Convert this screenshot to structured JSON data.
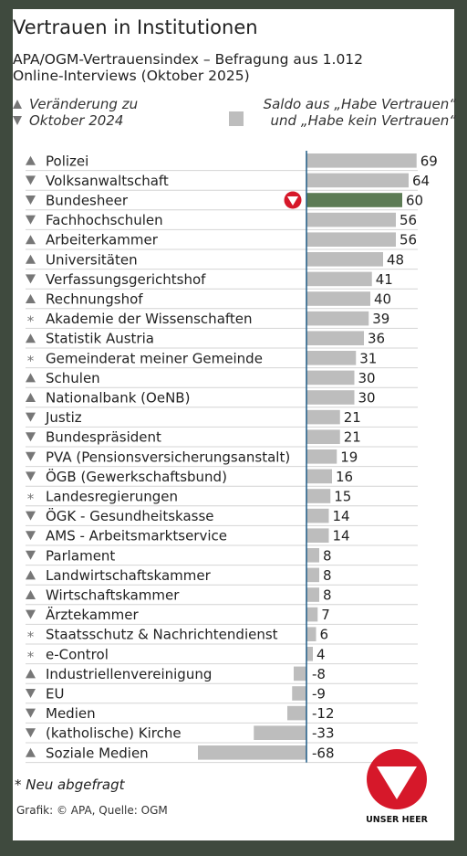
{
  "header": {
    "title": "Vertrauen in Institutionen",
    "subtitle": "APA/OGM-Vertrauensindex – Befragung aus 1.012 Online-Interviews (Oktober 2025)"
  },
  "legend": {
    "change_line1": "Veränderung zu",
    "change_line2": "Oktober 2024",
    "saldo_line1": "Saldo aus „Habe Vertrauen“",
    "saldo_line2": "und „Habe kein Vertrauen“"
  },
  "footer": {
    "note": "* Neu abgefragt",
    "source": "Grafik: © APA, Quelle: OGM",
    "logo_text": "UNSER HEER"
  },
  "colors": {
    "bar": "#bdbdbd",
    "highlight_bar": "#5d7c55",
    "marker": "#777777",
    "badge_red": "#d6182a",
    "zero_line": "#1f5b86",
    "background": "#3f4a3e"
  },
  "chart_data": {
    "type": "bar",
    "orientation": "horizontal",
    "title": "Vertrauen in Institutionen",
    "highlight": "Bundesheer",
    "categories": [
      "Polizei",
      "Volksanwaltschaft",
      "Bundesheer",
      "Fachhochschulen",
      "Arbeiterkammer",
      "Universitäten",
      "Verfassungsgerichtshof",
      "Rechnungshof",
      "Akademie der Wissenschaften",
      "Statistik Austria",
      "Gemeinderat meiner Gemeinde",
      "Schulen",
      "Nationalbank (OeNB)",
      "Justiz",
      "Bundespräsident",
      "PVA (Pensionsversicherungsanstalt)",
      "ÖGB (Gewerkschaftsbund)",
      "Landesregierungen",
      "ÖGK - Gesundheitskasse",
      "AMS - Arbeitsmarktservice",
      "Parlament",
      "Landwirtschaftskammer",
      "Wirtschaftskammer",
      "Ärztekammer",
      "Staatsschutz & Nachrichtendienst",
      "e-Control",
      "Industriellenvereinigung",
      "EU",
      "Medien",
      "(katholische) Kirche",
      "Soziale Medien"
    ],
    "values": [
      69,
      64,
      60,
      56,
      56,
      48,
      41,
      40,
      39,
      36,
      31,
      30,
      30,
      21,
      21,
      19,
      16,
      15,
      14,
      14,
      8,
      8,
      8,
      7,
      6,
      4,
      -8,
      -9,
      -12,
      -33,
      -68
    ],
    "value_labels": [
      "69",
      "64",
      "60",
      "56",
      "56",
      "48",
      "41",
      "40",
      "39",
      "36",
      "31",
      "30",
      "30",
      "21",
      "21",
      "19",
      "16",
      "15",
      "14",
      "14",
      "8",
      "8",
      "8",
      "7",
      "6",
      "4",
      "-8",
      "-9",
      "-12",
      "-33",
      "-68"
    ],
    "change": [
      "up",
      "down",
      "down",
      "down",
      "up",
      "up",
      "down",
      "up",
      "new",
      "up",
      "new",
      "up",
      "up",
      "down",
      "down",
      "down",
      "down",
      "new",
      "down",
      "down",
      "down",
      "up",
      "up",
      "down",
      "new",
      "new",
      "up",
      "down",
      "down",
      "down",
      "up"
    ],
    "xlim": [
      -68,
      69
    ]
  }
}
